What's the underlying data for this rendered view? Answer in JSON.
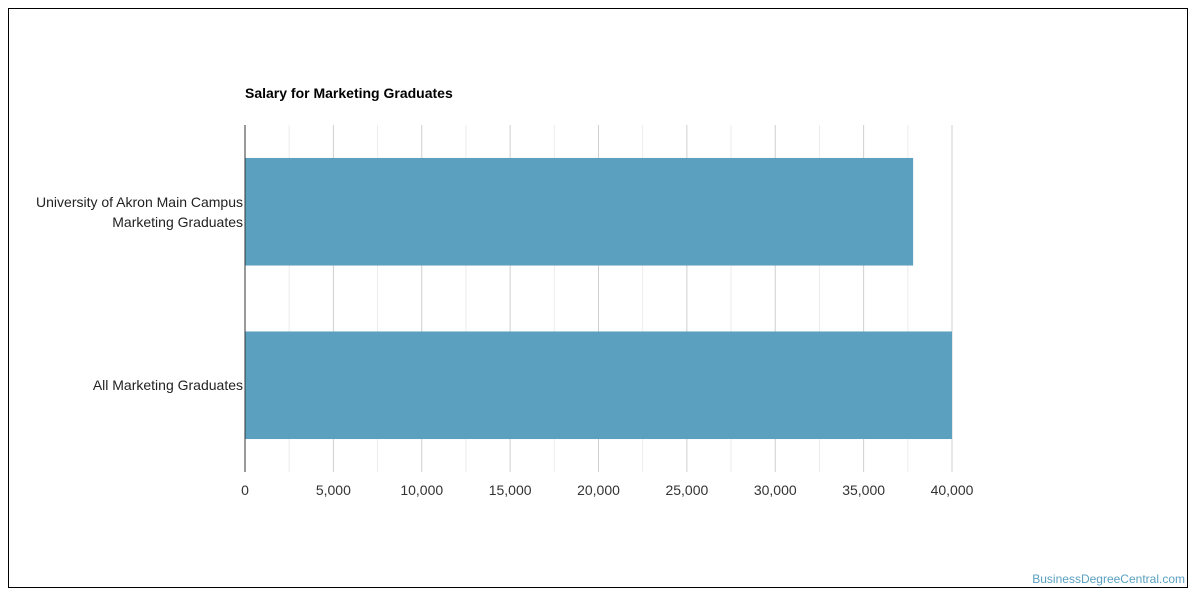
{
  "chart_data": {
    "type": "bar",
    "orientation": "horizontal",
    "title": "Salary for Marketing Graduates",
    "categories": [
      "University of Akron Main Campus\nMarketing Graduates",
      "All Marketing Graduates"
    ],
    "values": [
      37800,
      40000
    ],
    "xlim": [
      0,
      40000
    ],
    "x_ticks": [
      "0",
      "5,000",
      "10,000",
      "15,000",
      "20,000",
      "25,000",
      "30,000",
      "35,000",
      "40,000"
    ],
    "bar_color": "#5ba1bf",
    "grid": true
  },
  "watermark": "BusinessDegreeCentral.com"
}
